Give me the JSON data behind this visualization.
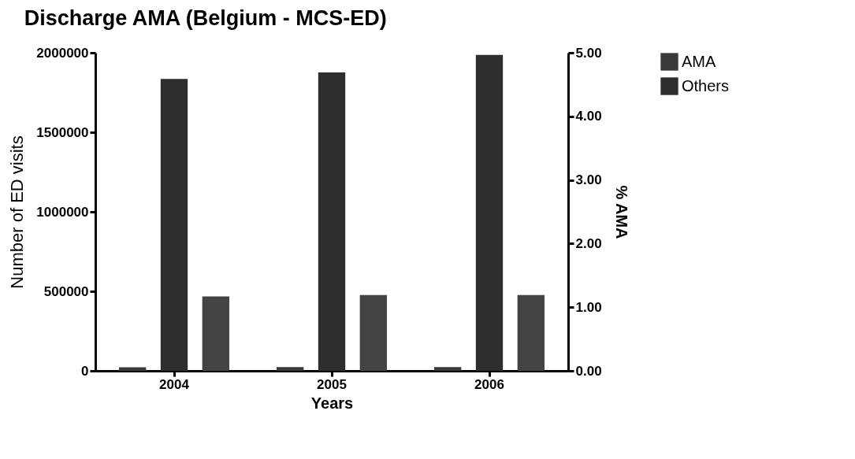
{
  "chart_data": {
    "type": "bar",
    "title": "Discharge AMA (Belgium - MCS-ED)",
    "xlabel": "Years",
    "ylabel": "Number of ED visits",
    "y2label": "% AMA",
    "categories": [
      "2004",
      "2005",
      "2006"
    ],
    "series": [
      {
        "name": "AMA",
        "color": "#3a3a3a",
        "values": [
          22000,
          23000,
          23000
        ]
      },
      {
        "name": "Others",
        "color": "#2e2e2e",
        "values": [
          1835000,
          1876000,
          1987000
        ]
      },
      {
        "color": "#444444",
        "axis": "y2",
        "values": [
          1.17,
          1.19,
          1.19
        ]
      }
    ],
    "ylim": [
      0,
      2000000
    ],
    "yticks": [
      0,
      500000,
      1000000,
      1500000,
      2000000
    ],
    "y2lim": [
      0,
      5
    ],
    "y2ticks": [
      {
        "value": 0,
        "label": "0.00"
      },
      {
        "value": 1,
        "label": "1.00"
      },
      {
        "value": 2,
        "label": "2.00"
      },
      {
        "value": 3,
        "label": "3.00"
      },
      {
        "value": 4,
        "label": "4.00"
      },
      {
        "value": 5,
        "label": "5.00"
      }
    ],
    "legend": "top right",
    "grid": false
  }
}
